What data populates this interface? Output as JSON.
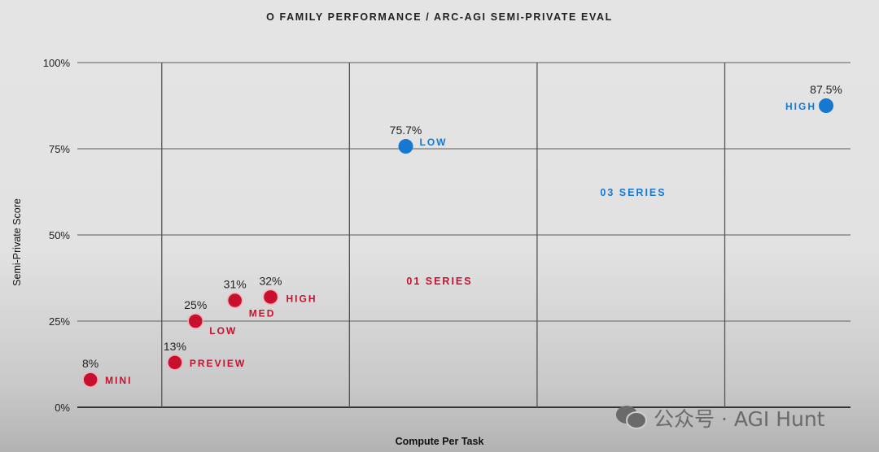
{
  "chart_data": {
    "type": "scatter",
    "title": "O FAMILY PERFORMANCE / ARC-AGI SEMI-PRIVATE EVAL",
    "xlabel": "Compute Per Task",
    "ylabel": "Semi-Private Score",
    "ylim": [
      0,
      100
    ],
    "yticks": [
      "0%",
      "25%",
      "50%",
      "75%",
      "100%"
    ],
    "ytick_values": [
      0,
      25,
      50,
      75,
      100
    ],
    "xlim": [
      0.55,
      4.67
    ],
    "x_gridlines": [
      1,
      2,
      3,
      4
    ],
    "x_tick_labels_shown": false,
    "grid": true,
    "series": [
      {
        "name": "01 SERIES",
        "color": "#c8102e",
        "points": [
          {
            "label": "MINI",
            "value_label": "8%",
            "x": 0.62,
            "y": 8
          },
          {
            "label": "PREVIEW",
            "value_label": "13%",
            "x": 1.07,
            "y": 13
          },
          {
            "label": "LOW",
            "value_label": "25%",
            "x": 1.18,
            "y": 25
          },
          {
            "label": "MED",
            "value_label": "31%",
            "x": 1.39,
            "y": 31
          },
          {
            "label": "HIGH",
            "value_label": "32%",
            "x": 1.58,
            "y": 32
          }
        ]
      },
      {
        "name": "03 SERIES",
        "color": "#1778d2",
        "points": [
          {
            "label": "LOW",
            "value_label": "75.7%",
            "x": 2.3,
            "y": 75.7
          },
          {
            "label": "HIGH",
            "value_label": "87.5%",
            "x": 4.54,
            "y": 87.5
          }
        ]
      }
    ]
  },
  "watermark": {
    "text": "公众号 · AGI Hunt",
    "icon": "wechat-icon"
  }
}
